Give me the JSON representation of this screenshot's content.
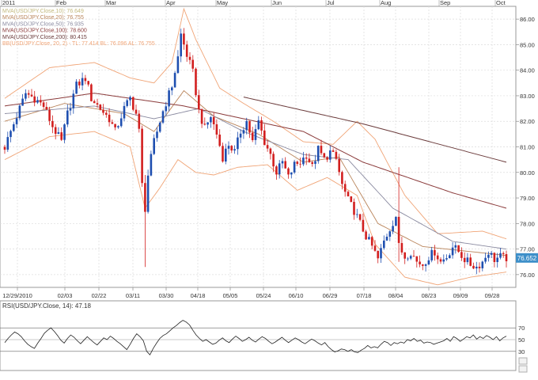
{
  "colors": {
    "bull": "#1f4fb0",
    "bear": "#d21f1f",
    "bbands": "#f0a476",
    "mva10": "#c2b87c",
    "mva20": "#b9845a",
    "mva50": "#8a8aa0",
    "mva100": "#8a3a3a",
    "mva200": "#6a3a3a",
    "grid": "#dcdcdc",
    "frame": "#999999",
    "price_badge": "#3d8fc9",
    "rsi": "#222222"
  },
  "chart_data": [
    {
      "type": "candlestick",
      "title": "",
      "symbol": "USD/JPY",
      "top_months": [
        "2011",
        "Feb",
        "Mar",
        "Apr",
        "May",
        "Jun",
        "Jul",
        "Aug",
        "Sep",
        "Oct"
      ],
      "x_ticks": [
        "12/29/2010",
        "02/03",
        "02/22",
        "03/11",
        "03/30",
        "04/18",
        "05/05",
        "05/24",
        "06/10",
        "06/29",
        "07/18",
        "08/04",
        "08/23",
        "09/09",
        "09/28"
      ],
      "ylim": [
        75.5,
        86.5
      ],
      "y_ticks": [
        76.0,
        77.0,
        78.0,
        79.0,
        80.0,
        81.0,
        82.0,
        83.0,
        84.0,
        85.0,
        86.0
      ],
      "y_tick_labels": [
        "76.00",
        "77.00",
        "78.00",
        "79.00",
        "80.00",
        "81.00",
        "82.00",
        "83.00",
        "84.00",
        "85.00",
        "86.00"
      ],
      "last_price": "76.652",
      "legend": [
        {
          "label": "MVA(USD/JPY.Close,10): 76.649",
          "color_key": "mva10"
        },
        {
          "label": "MVA(USD/JPY.Close,20): 76.755",
          "color_key": "mva20"
        },
        {
          "label": "MVA(USD/JPY.Close,50): 76.935",
          "color_key": "mva50"
        },
        {
          "label": "MVA(USD/JPY.Close,100): 78.600",
          "color_key": "mva100"
        },
        {
          "label": "MVA(USD/JPY.Close,200): 80.415",
          "color_key": "mva200"
        },
        {
          "label": "BB(USD/JPY.Close, 20, 2) - TL: 77.414  BL: 76.096  AL: 76.755",
          "color_key": "bbands"
        }
      ],
      "close_path": [
        [
          0,
          81.0
        ],
        [
          4,
          82.2
        ],
        [
          7,
          83.1
        ],
        [
          10,
          82.9
        ],
        [
          13,
          82.6
        ],
        [
          16,
          81.8
        ],
        [
          19,
          81.2
        ],
        [
          21,
          82.3
        ],
        [
          24,
          83.4
        ],
        [
          27,
          83.7
        ],
        [
          29,
          82.9
        ],
        [
          32,
          82.5
        ],
        [
          35,
          82.1
        ],
        [
          37,
          81.6
        ],
        [
          40,
          82.5
        ],
        [
          42,
          82.9
        ],
        [
          44,
          82.3
        ],
        [
          45,
          81.6
        ],
        [
          46,
          79.5
        ],
        [
          47,
          78.6
        ],
        [
          48,
          79.9
        ],
        [
          50,
          81.2
        ],
        [
          53,
          82.4
        ],
        [
          56,
          83.4
        ],
        [
          58,
          84.5
        ],
        [
          59,
          85.4
        ],
        [
          61,
          84.6
        ],
        [
          63,
          83.9
        ],
        [
          65,
          82.4
        ],
        [
          67,
          81.7
        ],
        [
          69,
          82.2
        ],
        [
          71,
          81.5
        ],
        [
          73,
          80.6
        ],
        [
          75,
          81.1
        ],
        [
          77,
          80.8
        ],
        [
          79,
          81.6
        ],
        [
          81,
          82.0
        ],
        [
          83,
          81.2
        ],
        [
          85,
          82.0
        ],
        [
          87,
          81.2
        ],
        [
          89,
          80.7
        ],
        [
          91,
          80.0
        ],
        [
          93,
          80.4
        ],
        [
          95,
          79.8
        ],
        [
          97,
          80.3
        ],
        [
          99,
          80.4
        ],
        [
          101,
          80.7
        ],
        [
          103,
          80.2
        ],
        [
          105,
          80.9
        ],
        [
          107,
          80.5
        ],
        [
          109,
          80.8
        ],
        [
          111,
          80.5
        ],
        [
          113,
          79.5
        ],
        [
          115,
          78.9
        ],
        [
          117,
          78.5
        ],
        [
          119,
          78.0
        ],
        [
          121,
          77.5
        ],
        [
          123,
          77.1
        ],
        [
          125,
          76.6
        ],
        [
          127,
          77.3
        ],
        [
          129,
          77.8
        ],
        [
          131,
          78.3
        ],
        [
          132,
          77.1
        ],
        [
          134,
          76.7
        ],
        [
          136,
          76.9
        ],
        [
          138,
          76.5
        ],
        [
          140,
          76.4
        ],
        [
          142,
          76.7
        ],
        [
          144,
          76.9
        ],
        [
          146,
          76.5
        ],
        [
          148,
          76.7
        ],
        [
          150,
          77.1
        ],
        [
          152,
          76.9
        ],
        [
          154,
          76.6
        ],
        [
          156,
          76.4
        ],
        [
          158,
          76.3
        ],
        [
          160,
          76.5
        ],
        [
          162,
          76.9
        ],
        [
          164,
          76.6
        ],
        [
          166,
          76.7
        ],
        [
          167,
          76.65
        ]
      ],
      "spikes": [
        {
          "day": 47,
          "low": 76.3,
          "high": 79.9
        },
        {
          "day": 132,
          "low": 76.5,
          "high": 80.2
        }
      ],
      "mva200_points": [
        [
          80,
          82.95
        ],
        [
          120,
          81.9
        ],
        [
          168,
          80.4
        ]
      ],
      "mva100_points": [
        [
          0,
          82.6
        ],
        [
          30,
          83.1
        ],
        [
          60,
          82.6
        ],
        [
          80,
          82.1
        ],
        [
          100,
          81.6
        ],
        [
          120,
          80.4
        ],
        [
          150,
          79.2
        ],
        [
          168,
          78.6
        ]
      ],
      "mva50_points": [
        [
          0,
          82.3
        ],
        [
          30,
          82.6
        ],
        [
          50,
          82.1
        ],
        [
          65,
          82.5
        ],
        [
          80,
          81.6
        ],
        [
          100,
          80.7
        ],
        [
          115,
          80.5
        ],
        [
          130,
          78.6
        ],
        [
          150,
          77.3
        ],
        [
          168,
          77.0
        ]
      ],
      "mva20_points": [
        [
          0,
          82.0
        ],
        [
          20,
          82.7
        ],
        [
          40,
          82.3
        ],
        [
          50,
          81.6
        ],
        [
          60,
          83.2
        ],
        [
          70,
          82.2
        ],
        [
          85,
          81.5
        ],
        [
          100,
          80.4
        ],
        [
          112,
          80.6
        ],
        [
          125,
          78.0
        ],
        [
          140,
          77.1
        ],
        [
          168,
          76.75
        ]
      ],
      "bb_upper_points": [
        [
          0,
          82.9
        ],
        [
          15,
          84.1
        ],
        [
          30,
          84.3
        ],
        [
          42,
          83.7
        ],
        [
          50,
          83.5
        ],
        [
          56,
          84.3
        ],
        [
          60,
          86.4
        ],
        [
          64,
          85.2
        ],
        [
          72,
          83.3
        ],
        [
          80,
          82.7
        ],
        [
          90,
          82.0
        ],
        [
          100,
          81.2
        ],
        [
          110,
          81.1
        ],
        [
          118,
          82.0
        ],
        [
          124,
          81.3
        ],
        [
          134,
          79.1
        ],
        [
          145,
          77.6
        ],
        [
          160,
          77.7
        ],
        [
          168,
          77.4
        ]
      ],
      "bb_lower_points": [
        [
          0,
          80.5
        ],
        [
          15,
          81.4
        ],
        [
          30,
          81.6
        ],
        [
          42,
          81.0
        ],
        [
          47,
          78.6
        ],
        [
          52,
          79.4
        ],
        [
          58,
          80.5
        ],
        [
          64,
          80.0
        ],
        [
          70,
          79.9
        ],
        [
          78,
          80.2
        ],
        [
          88,
          80.3
        ],
        [
          98,
          79.3
        ],
        [
          108,
          79.8
        ],
        [
          118,
          79.1
        ],
        [
          124,
          77.2
        ],
        [
          134,
          75.9
        ],
        [
          145,
          75.6
        ],
        [
          156,
          75.9
        ],
        [
          168,
          76.1
        ]
      ]
    },
    {
      "type": "line",
      "title": "",
      "legend": [
        {
          "label": "RSI(USD/JPY.Close, 14): 47.18",
          "color_key": "rsi"
        }
      ],
      "ylim": [
        0,
        100
      ],
      "y_ticks": [
        30,
        50,
        70
      ],
      "y_tick_labels": [
        "30",
        "50",
        "70"
      ],
      "values": [
        45,
        52,
        58,
        63,
        60,
        55,
        48,
        42,
        38,
        35,
        44,
        52,
        61,
        66,
        70,
        64,
        57,
        49,
        44,
        52,
        58,
        54,
        48,
        43,
        49,
        55,
        50,
        45,
        41,
        47,
        53,
        50,
        56,
        52,
        47,
        43,
        38,
        33,
        42,
        52,
        60,
        55,
        48,
        30,
        24,
        35,
        44,
        52,
        57,
        60,
        65,
        70,
        74,
        79,
        83,
        80,
        75,
        66,
        58,
        52,
        47,
        50,
        46,
        42,
        44,
        49,
        53,
        48,
        45,
        51,
        56,
        52,
        47,
        50,
        54,
        49,
        46,
        51,
        55,
        52,
        47,
        43,
        46,
        50,
        54,
        49,
        45,
        49,
        53,
        50,
        46,
        43,
        47,
        51,
        48,
        44,
        41,
        45,
        38,
        33,
        29,
        31,
        34,
        33,
        30,
        33,
        29,
        28,
        32,
        35,
        40,
        36,
        38,
        36,
        42,
        47,
        45,
        40,
        45,
        43,
        46,
        44,
        50,
        48,
        52,
        47,
        49,
        44,
        46,
        45,
        42,
        44,
        46,
        48,
        52,
        47,
        55,
        52,
        47,
        51,
        55,
        53,
        58,
        51,
        55,
        52,
        57,
        54,
        50,
        55,
        48,
        53,
        56
      ]
    }
  ]
}
